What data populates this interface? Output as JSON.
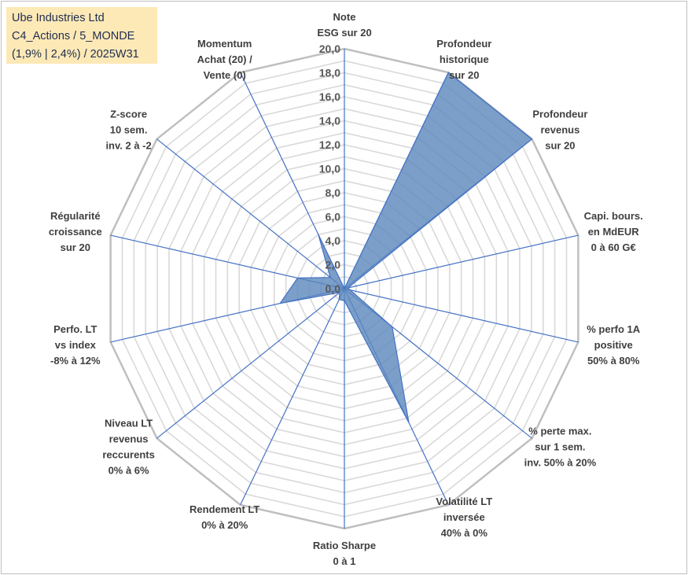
{
  "title_box": {
    "lines": [
      "Ube Industries Ltd",
      "C4_Actions / 5_MONDE",
      "(1,9% | 2,4%) / 2025W31"
    ],
    "background": "#fde9b6"
  },
  "colors": {
    "fill": "#5b87bd",
    "fill_opacity": 0.8,
    "stroke": "#4472c4",
    "spoke": "#4472c4",
    "grid": "#d9d9d9",
    "outer_ring": "#bfbfbf"
  },
  "chart_data": {
    "type": "radar",
    "rmin": 0,
    "rmax": 20,
    "ticks": [
      "0,0",
      "2,0",
      "4,0",
      "6,0",
      "8,0",
      "10,0",
      "12,0",
      "14,0",
      "16,0",
      "18,0",
      "20,0"
    ],
    "axes": [
      {
        "label": [
          "Note",
          "ESG sur 20"
        ],
        "value": 0
      },
      {
        "label": [
          "Profondeur",
          "historique",
          "sur 20"
        ],
        "value": 20
      },
      {
        "label": [
          "Profondeur",
          "revenus",
          "sur 20"
        ],
        "value": 20
      },
      {
        "label": [
          "Capi. bours.",
          "en MdEUR",
          "0 à 60 G€"
        ],
        "value": 0.3
      },
      {
        "label": [
          "% perfo 1A",
          "positive",
          "50% à 80%"
        ],
        "value": 0.5
      },
      {
        "label": [
          "% perte max.",
          "sur 1 sem.",
          "inv. 50% à 20%"
        ],
        "value": 5.1
      },
      {
        "label": [
          "Volatilité LT",
          "inversée",
          "40% à 0%"
        ],
        "value": 12.4
      },
      {
        "label": [
          "Ratio Sharpe",
          "0 à 1"
        ],
        "value": 1
      },
      {
        "label": [
          "Rendement LT",
          "0% à 20%"
        ],
        "value": 1
      },
      {
        "label": [
          "Niveau LT",
          "revenus",
          "reccurents",
          "0% à 6%"
        ],
        "value": 0.5
      },
      {
        "label": [
          "Perfo. LT",
          "vs index",
          "-8% à 12%"
        ],
        "value": 5.5
      },
      {
        "label": [
          "Régularité",
          "croissance",
          "sur 20"
        ],
        "value": 4
      },
      {
        "label": [
          "Z-score",
          "10 sem.",
          "inv. 2 à -2"
        ],
        "value": 1.5
      },
      {
        "label": [
          "Momentum",
          "Achat (20) /",
          "Vente (0)"
        ],
        "value": 5
      }
    ]
  }
}
